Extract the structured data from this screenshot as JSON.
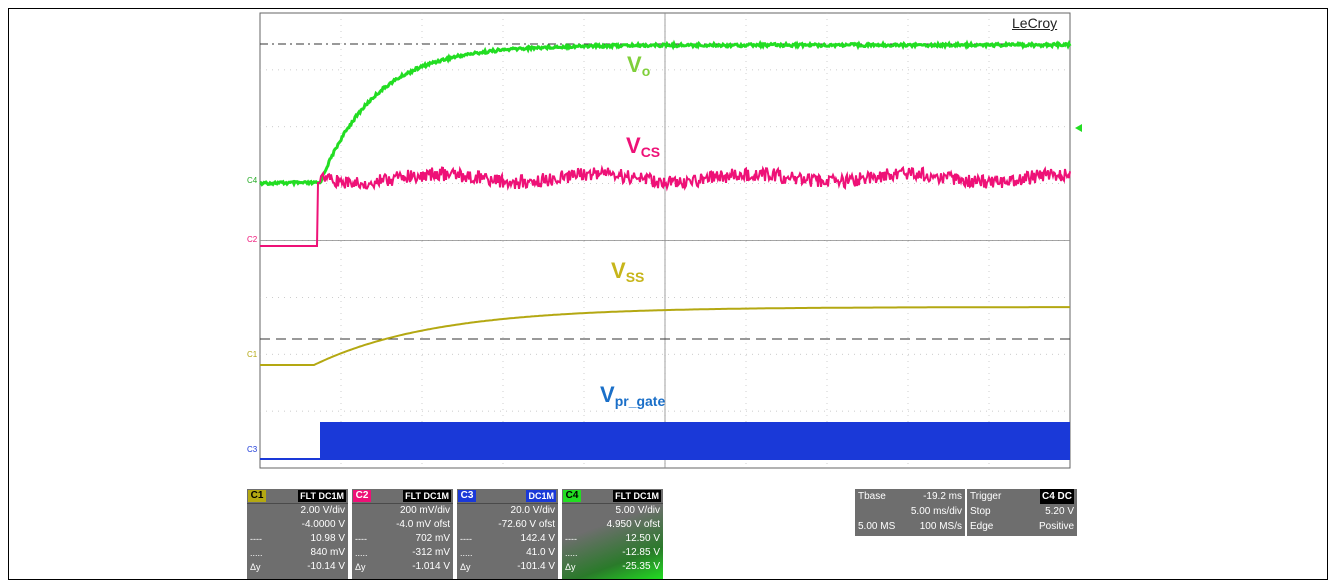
{
  "brand": "LeCroy",
  "traces": {
    "vo": {
      "label": "V",
      "sub": "o",
      "color": "#22dd22"
    },
    "vcs": {
      "label": "V",
      "sub": "CS",
      "color": "#ee1177"
    },
    "vss": {
      "label": "V",
      "sub": "SS",
      "color": "#b4a812"
    },
    "vpr": {
      "label": "V",
      "sub": "pr_gate",
      "color": "#1a39d8"
    }
  },
  "markers": {
    "c1": "C1",
    "c2": "C2",
    "c3": "C3",
    "c4": "C4"
  },
  "channels": [
    {
      "id": "C1",
      "color": "#b4a812",
      "flags": "FLT DC1M",
      "vdiv": "2.00 V/div",
      "ofst": "-4.0000 V",
      "m1": "10.98 V",
      "m2": "840 mV",
      "dy_label": "Δy",
      "dy": "-10.14 V"
    },
    {
      "id": "C2",
      "color": "#ee1177",
      "flags": "FLT DC1M",
      "vdiv": "200 mV/div",
      "ofst": "-4.0 mV ofst",
      "m1": "702 mV",
      "m2": "-312 mV",
      "dy_label": "Δy",
      "dy": "-1.014 V"
    },
    {
      "id": "C3",
      "color": "#1a39d8",
      "flags": "DC1M",
      "vdiv": "20.0 V/div",
      "ofst": "-72.60 V ofst",
      "m1": "142.4 V",
      "m2": "41.0 V",
      "dy_label": "Δy",
      "dy": "-101.4 V"
    },
    {
      "id": "C4",
      "color": "#22dd22",
      "flags": "FLT DC1M",
      "vdiv": "5.00 V/div",
      "ofst": "4.950 V ofst",
      "m1": "12.50 V",
      "m2": "-12.85 V",
      "dy_label": "Δy",
      "dy": "-25.35 V"
    }
  ],
  "timebase": {
    "label": "Tbase",
    "offset": "-19.2 ms",
    "tdiv": "5.00 ms/div",
    "samples": "5.00 MS",
    "rate": "100 MS/s"
  },
  "trigger": {
    "label": "Trigger",
    "source": "C4 DC",
    "mode": "Stop",
    "level": "5.20 V",
    "type": "Edge",
    "slope": "Positive"
  }
}
